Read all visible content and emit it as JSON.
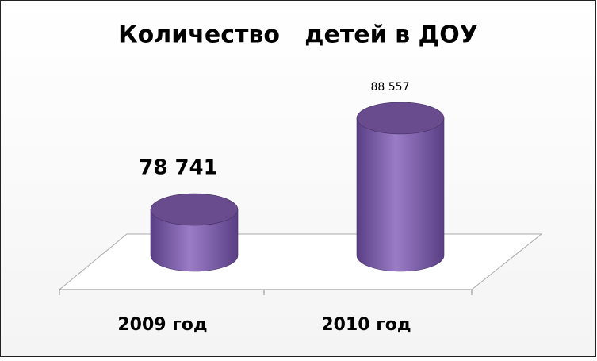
{
  "chart_data": {
    "type": "cylinder-bar",
    "title": "Количество   детей в ДОУ",
    "categories": [
      "2009 год",
      "2010 год"
    ],
    "values": [
      78741,
      88557
    ],
    "value_labels": [
      "78 741",
      "88 557"
    ],
    "color": "#7b5aa6",
    "ylim": [
      73800,
      90000
    ]
  }
}
